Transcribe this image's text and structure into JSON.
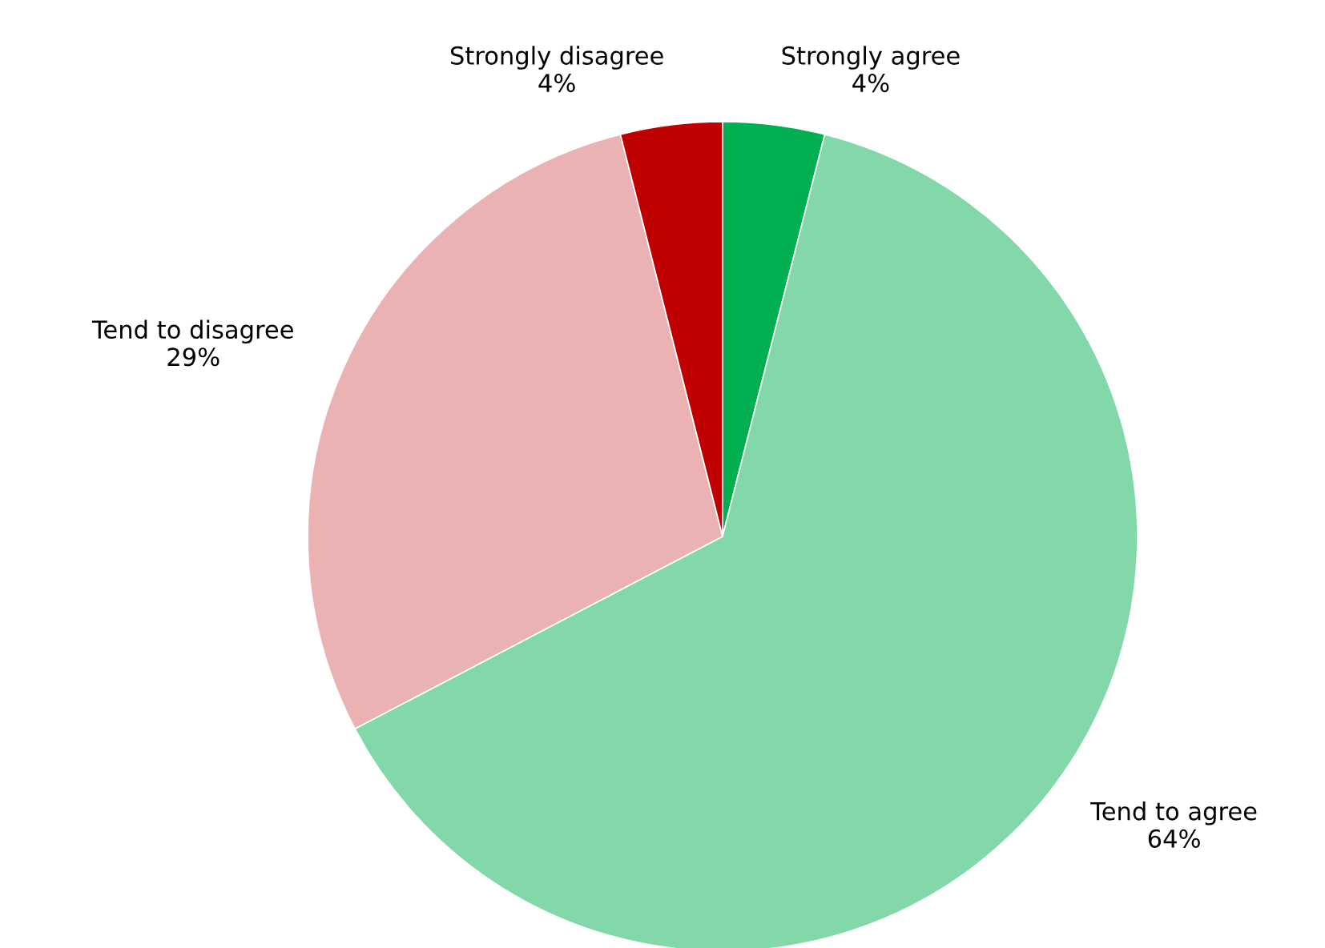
{
  "chart_data": {
    "type": "pie",
    "categories": [
      "Strongly agree",
      "Tend to agree",
      "Tend to disagree",
      "Strongly disagree"
    ],
    "values": [
      4,
      64,
      29,
      4
    ],
    "value_labels": [
      "4%",
      "64%",
      "29%",
      "4%"
    ],
    "colors": [
      "#00b050",
      "#82d8a8",
      "#eab2b2",
      "#c00000"
    ],
    "legend": false
  }
}
